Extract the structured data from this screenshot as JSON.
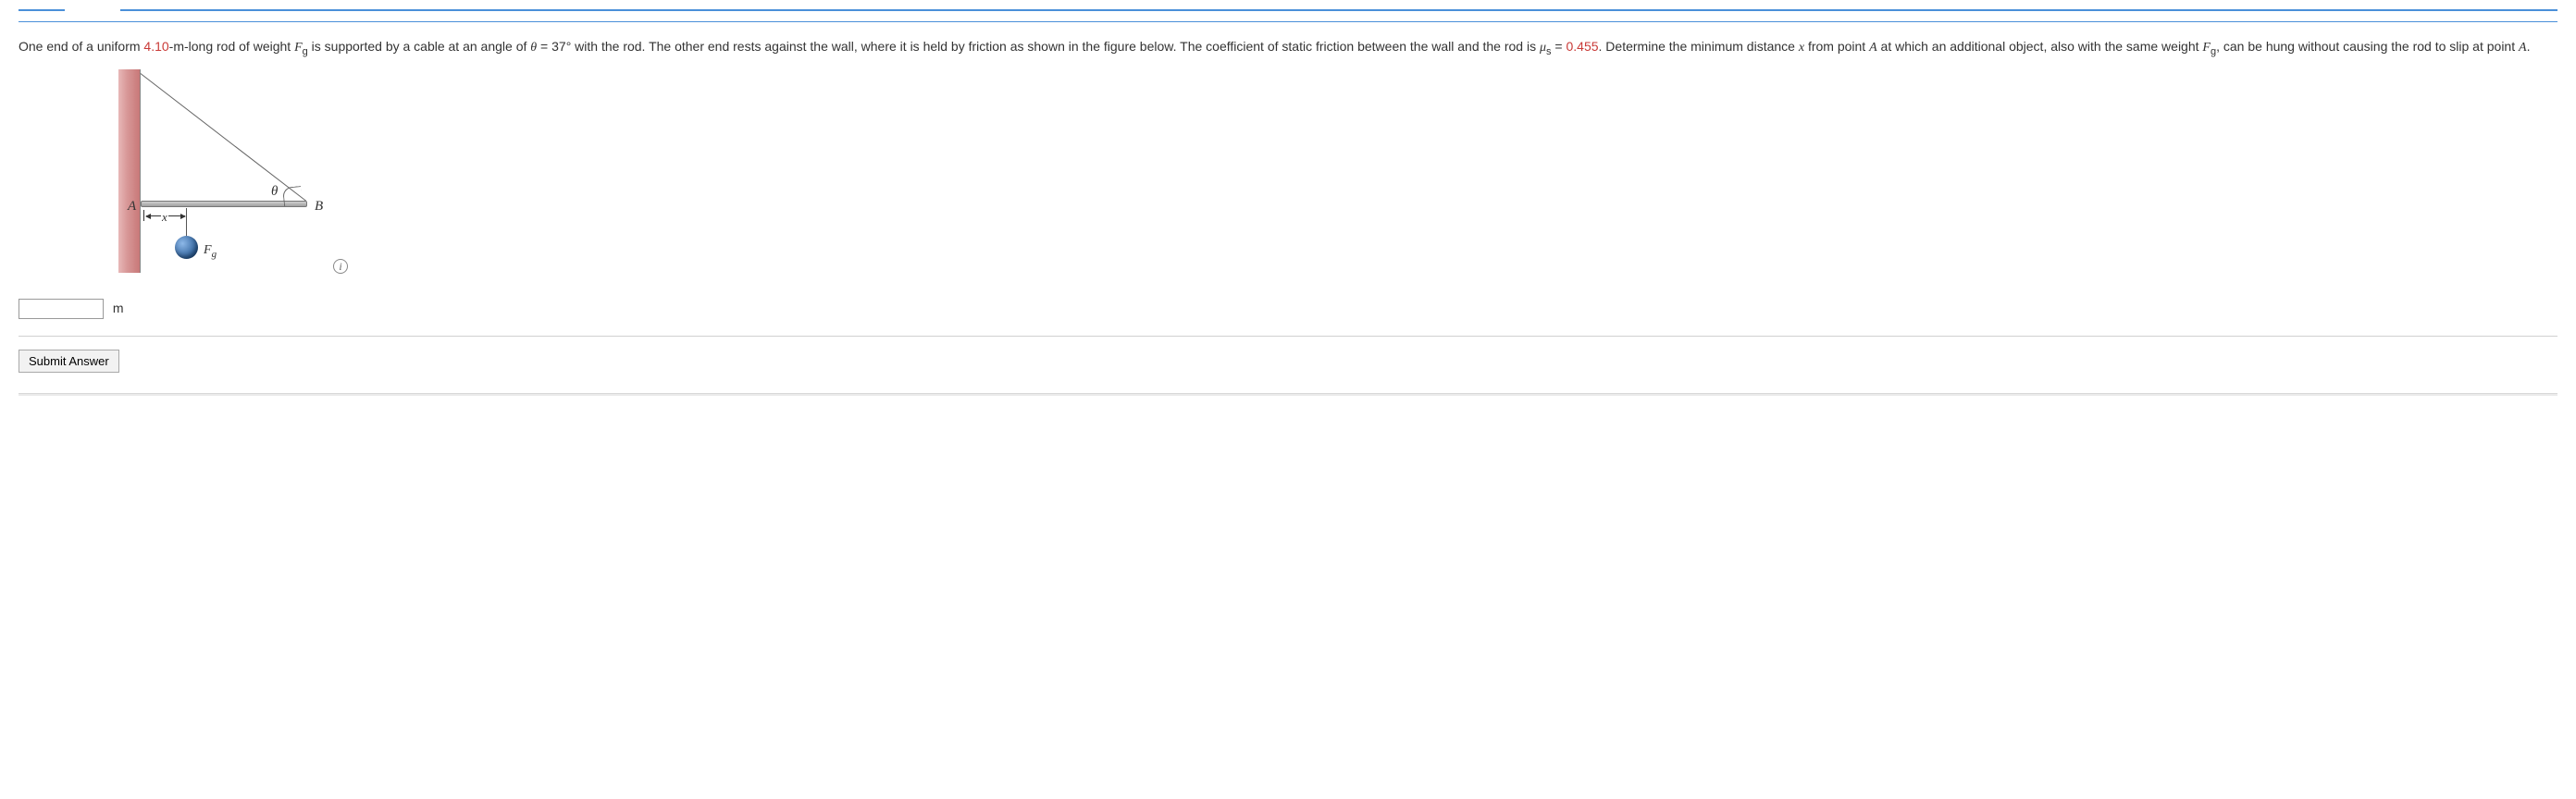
{
  "problem": {
    "rod_length": "4.10",
    "length_unit": "-m",
    "weight_sym": "F",
    "weight_sub": "g",
    "angle_sym": "θ",
    "angle_val": "37°",
    "mu_sym": "μ",
    "mu_sub": "s",
    "mu_val": "0.455",
    "var_x": "x",
    "point_A": "A",
    "weight2_sym": "F",
    "weight2_sub": "g",
    "text_1": "One end of a uniform ",
    "text_2": "-long rod of weight ",
    "text_3": " is supported by a cable at an angle of ",
    "text_4": " = ",
    "text_5": " with the rod. The other end rests against the wall, where it is held by friction as shown in the figure below. The coefficient of static friction between the wall and the rod is ",
    "text_6": " = ",
    "text_7": ". Determine the minimum distance ",
    "text_8": " from point ",
    "text_9": " at which an additional object, also with the same weight ",
    "text_10": ", can be hung without causing the rod to slip at point ",
    "text_11": "."
  },
  "diagram": {
    "label_A": "A",
    "label_B": "B",
    "label_theta": "θ",
    "label_x": "x",
    "label_Fg": "F",
    "label_Fg_sub": "g",
    "info": "i"
  },
  "answer": {
    "unit": "m",
    "value": ""
  },
  "buttons": {
    "submit": "Submit Answer"
  },
  "colors": {
    "accent_red": "#c93a37",
    "border_blue": "#4a90d9"
  }
}
